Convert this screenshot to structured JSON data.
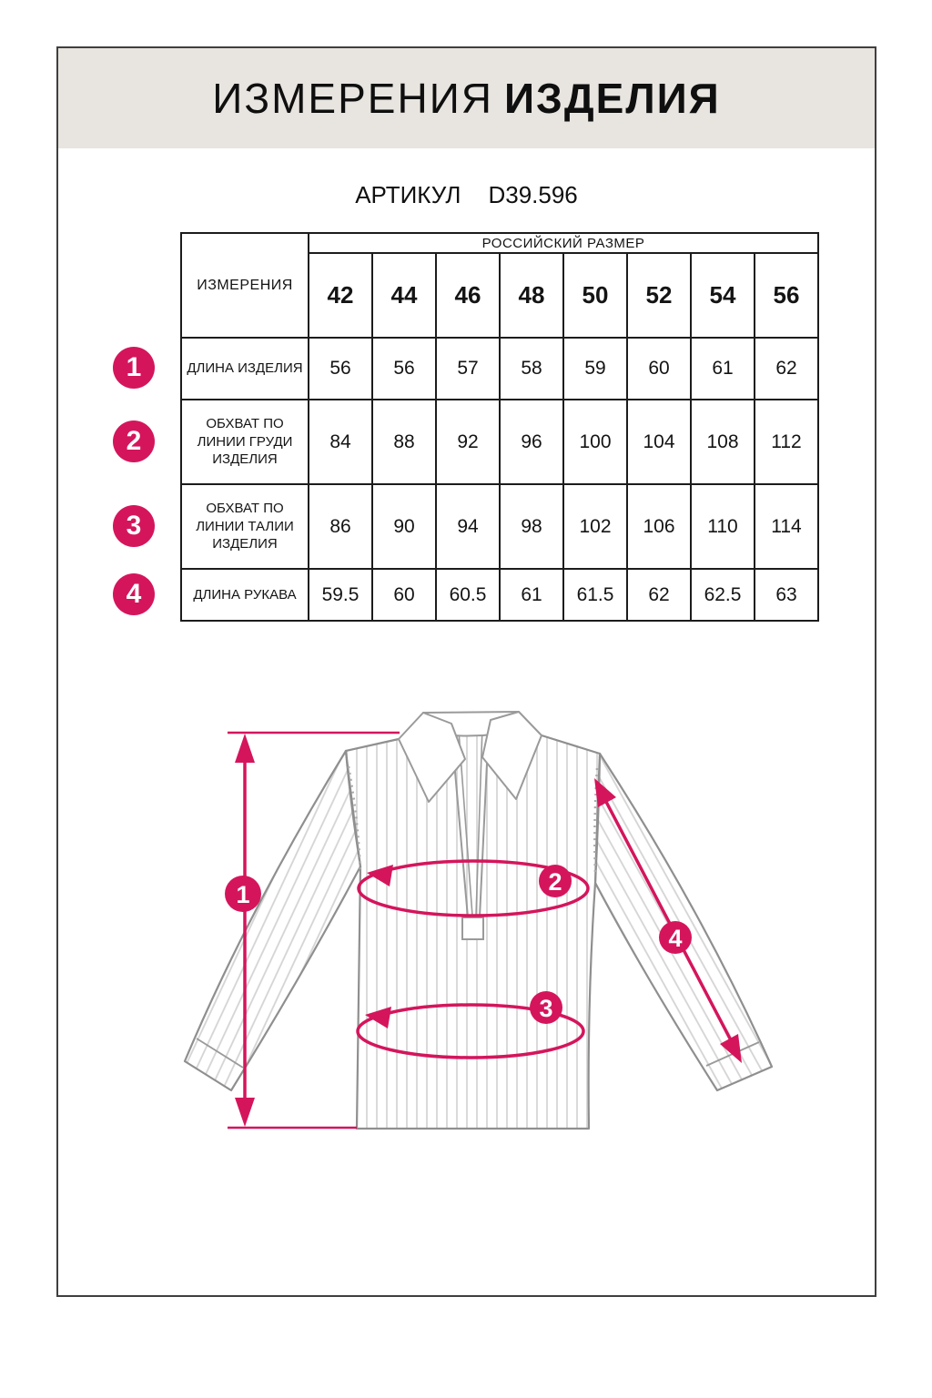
{
  "header": {
    "title_regular": "ИЗМЕРЕНИЯ",
    "title_bold": "ИЗДЕЛИЯ"
  },
  "article": {
    "label": "АРТИКУЛ",
    "value": "D39.596"
  },
  "table": {
    "measurements_header": "ИЗМЕРЕНИЯ",
    "size_group_header": "РОССИЙСКИЙ РАЗМЕР",
    "sizes": [
      "42",
      "44",
      "46",
      "48",
      "50",
      "52",
      "54",
      "56"
    ],
    "rows": [
      {
        "num": "1",
        "label": "ДЛИНА ИЗДЕЛИЯ",
        "values": [
          "56",
          "56",
          "57",
          "58",
          "59",
          "60",
          "61",
          "62"
        ]
      },
      {
        "num": "2",
        "label": "ОБХВАТ ПО ЛИНИИ ГРУДИ ИЗДЕЛИЯ",
        "values": [
          "84",
          "88",
          "92",
          "96",
          "100",
          "104",
          "108",
          "112"
        ]
      },
      {
        "num": "3",
        "label": "ОБХВАТ ПО ЛИНИИ ТАЛИИ ИЗДЕЛИЯ",
        "values": [
          "86",
          "90",
          "94",
          "98",
          "102",
          "106",
          "110",
          "114"
        ]
      },
      {
        "num": "4",
        "label": "ДЛИНА РУКАВА",
        "values": [
          "59.5",
          "60",
          "60.5",
          "61",
          "61.5",
          "62",
          "62.5",
          "63"
        ]
      }
    ]
  },
  "diagram": {
    "badges": [
      "1",
      "2",
      "3",
      "4"
    ]
  },
  "colors": {
    "accent": "#d4155c",
    "header_band": "#e8e4df"
  }
}
